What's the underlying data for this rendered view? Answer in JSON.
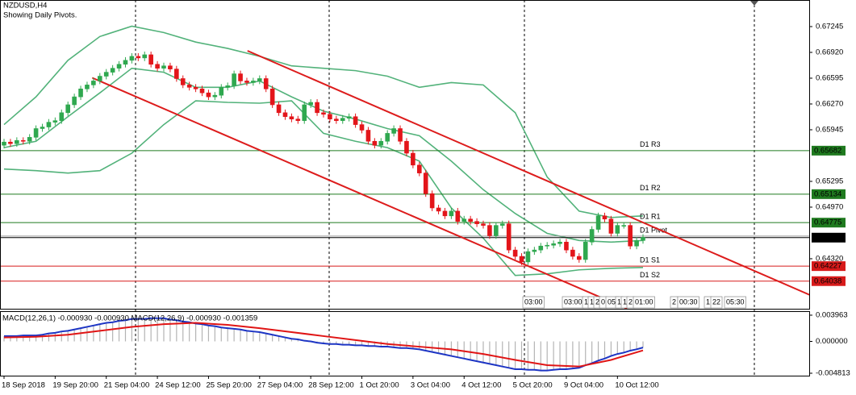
{
  "chart_data": [
    {
      "type": "candlestick",
      "title": "NZDUSD,H4",
      "subtitle": "Showing Daily Pivots.",
      "categories": [
        "18 Sep 2018",
        null,
        null,
        null,
        null,
        null,
        null,
        null,
        "19 Sep 20:00",
        null,
        null,
        null,
        null,
        null,
        null,
        null,
        "21 Sep 04:00",
        null,
        null,
        null,
        null,
        null,
        null,
        null,
        "24 Sep 12:00",
        null,
        null,
        null,
        null,
        null,
        null,
        null,
        "25 Sep 20:00",
        null,
        null,
        null,
        null,
        null,
        null,
        null,
        "27 Sep 04:00",
        null,
        null,
        null,
        null,
        null,
        null,
        null,
        "28 Sep 12:00",
        null,
        null,
        null,
        null,
        null,
        null,
        null,
        "1 Oct 20:00",
        null,
        null,
        null,
        null,
        null,
        null,
        null,
        "3 Oct 04:00",
        null,
        null,
        null,
        null,
        null,
        null,
        null,
        "4 Oct 12:00",
        null,
        null,
        null,
        null,
        null,
        null,
        null,
        "5 Oct 20:00",
        null,
        null,
        null,
        null,
        null,
        null,
        null,
        "9 Oct 04:00",
        null,
        null,
        null,
        null,
        null,
        null,
        null,
        "10 Oct 12:00",
        null,
        null,
        null,
        null
      ],
      "open": [
        0.6575,
        0.6579,
        0.6577,
        0.6581,
        0.658,
        0.6585,
        0.6596,
        0.6598,
        0.6604,
        0.6606,
        0.6616,
        0.6626,
        0.6636,
        0.6646,
        0.6651,
        0.6656,
        0.6662,
        0.6667,
        0.6672,
        0.6677,
        0.6682,
        0.6687,
        0.6685,
        0.6689,
        0.6677,
        0.6672,
        0.6675,
        0.6671,
        0.6659,
        0.6651,
        0.6648,
        0.6646,
        0.6641,
        0.6636,
        0.6638,
        0.6648,
        0.665,
        0.6665,
        0.6656,
        0.6654,
        0.6656,
        0.6659,
        0.6646,
        0.6626,
        0.6616,
        0.6611,
        0.6608,
        0.6606,
        0.6626,
        0.6629,
        0.6616,
        0.6614,
        0.6608,
        0.6606,
        0.6609,
        0.6611,
        0.6601,
        0.6594,
        0.658,
        0.6575,
        0.658,
        0.659,
        0.6596,
        0.658,
        0.6565,
        0.655,
        0.654,
        0.6514,
        0.6496,
        0.6492,
        0.6486,
        0.6492,
        0.6479,
        0.6482,
        0.6479,
        0.6476,
        0.6474,
        0.6461,
        0.6474,
        0.6476,
        0.6443,
        0.6435,
        0.6428,
        0.6441,
        0.6443,
        0.6448,
        0.6449,
        0.6451,
        0.6453,
        0.6443,
        0.6435,
        0.6431,
        0.6453,
        0.6469,
        0.6486,
        0.6482,
        0.6464,
        0.6474,
        0.6474,
        0.6448,
        0.6455
      ],
      "high": [
        0.6583,
        0.6583,
        0.6585,
        0.6585,
        0.6589,
        0.66,
        0.6602,
        0.6608,
        0.661,
        0.662,
        0.663,
        0.664,
        0.665,
        0.6655,
        0.666,
        0.6666,
        0.6671,
        0.6676,
        0.6681,
        0.6686,
        0.6691,
        0.6691,
        0.6693,
        0.6693,
        0.6681,
        0.6679,
        0.6679,
        0.6675,
        0.6663,
        0.6655,
        0.6652,
        0.665,
        0.6645,
        0.6642,
        0.6652,
        0.6654,
        0.6669,
        0.6669,
        0.666,
        0.666,
        0.6663,
        0.6663,
        0.665,
        0.663,
        0.662,
        0.6615,
        0.6612,
        0.663,
        0.6633,
        0.6633,
        0.662,
        0.6618,
        0.6612,
        0.6613,
        0.6615,
        0.6615,
        0.6605,
        0.6598,
        0.6584,
        0.6584,
        0.6594,
        0.66,
        0.66,
        0.6584,
        0.6569,
        0.6554,
        0.6544,
        0.6518,
        0.65,
        0.6496,
        0.6496,
        0.6496,
        0.6486,
        0.6486,
        0.6483,
        0.648,
        0.6478,
        0.6478,
        0.648,
        0.648,
        0.6447,
        0.6439,
        0.6445,
        0.6447,
        0.6452,
        0.6453,
        0.6455,
        0.6457,
        0.6457,
        0.6447,
        0.6439,
        0.6457,
        0.6473,
        0.649,
        0.649,
        0.6486,
        0.6478,
        0.6478,
        0.6478,
        0.6459,
        0.6463
      ],
      "low": [
        0.6571,
        0.6573,
        0.6573,
        0.6576,
        0.6576,
        0.6581,
        0.6592,
        0.6594,
        0.66,
        0.6602,
        0.6612,
        0.6622,
        0.6632,
        0.6642,
        0.6647,
        0.6652,
        0.6658,
        0.6663,
        0.6668,
        0.6673,
        0.6678,
        0.6681,
        0.6681,
        0.6673,
        0.6668,
        0.6668,
        0.6667,
        0.6655,
        0.6647,
        0.6644,
        0.6642,
        0.6637,
        0.6632,
        0.6632,
        0.6634,
        0.6644,
        0.6646,
        0.6652,
        0.665,
        0.665,
        0.6652,
        0.6642,
        0.6622,
        0.6612,
        0.6607,
        0.6604,
        0.6602,
        0.6602,
        0.6622,
        0.6612,
        0.661,
        0.6604,
        0.6602,
        0.6602,
        0.6605,
        0.6597,
        0.659,
        0.6576,
        0.6571,
        0.6571,
        0.6576,
        0.6586,
        0.6576,
        0.6561,
        0.6546,
        0.6536,
        0.651,
        0.6492,
        0.6488,
        0.6482,
        0.6482,
        0.6475,
        0.6475,
        0.6475,
        0.6472,
        0.647,
        0.6457,
        0.6457,
        0.647,
        0.6439,
        0.6431,
        0.6424,
        0.6424,
        0.6437,
        0.6439,
        0.6444,
        0.6445,
        0.6447,
        0.6439,
        0.6431,
        0.6427,
        0.6427,
        0.6449,
        0.6465,
        0.6478,
        0.646,
        0.646,
        0.647,
        0.6444,
        0.6444,
        0.6451
      ],
      "close": [
        0.6579,
        0.6577,
        0.6581,
        0.658,
        0.6585,
        0.6596,
        0.6598,
        0.6604,
        0.6606,
        0.6616,
        0.6626,
        0.6636,
        0.6646,
        0.6651,
        0.6656,
        0.6662,
        0.6667,
        0.6672,
        0.6677,
        0.6682,
        0.6687,
        0.6685,
        0.6689,
        0.6677,
        0.6672,
        0.6675,
        0.6671,
        0.6659,
        0.6651,
        0.6648,
        0.6646,
        0.6641,
        0.6636,
        0.6638,
        0.6648,
        0.665,
        0.6665,
        0.6656,
        0.6654,
        0.6656,
        0.6659,
        0.6646,
        0.6626,
        0.6616,
        0.6611,
        0.6608,
        0.6606,
        0.6626,
        0.6629,
        0.6616,
        0.6614,
        0.6608,
        0.6606,
        0.6609,
        0.6611,
        0.6601,
        0.6594,
        0.658,
        0.6575,
        0.658,
        0.659,
        0.6596,
        0.658,
        0.6565,
        0.655,
        0.654,
        0.6514,
        0.6496,
        0.6492,
        0.6486,
        0.6492,
        0.6479,
        0.6482,
        0.6479,
        0.6476,
        0.6474,
        0.6461,
        0.6474,
        0.6476,
        0.6443,
        0.6435,
        0.6428,
        0.6441,
        0.6443,
        0.6448,
        0.6449,
        0.6451,
        0.6453,
        0.6443,
        0.6435,
        0.6431,
        0.6453,
        0.6469,
        0.6486,
        0.6482,
        0.6464,
        0.6474,
        0.6474,
        0.6448,
        0.6455,
        0.6459
      ],
      "up_color": "#2fa84f",
      "down_color": "#e3151a",
      "bands": [
        {
          "color": "#52b27a",
          "x": [
            0,
            5,
            10,
            15,
            20,
            25,
            30,
            35,
            40,
            45,
            50,
            55,
            60,
            65,
            70,
            75,
            80,
            85,
            90,
            95,
            100
          ],
          "values": [
            0.6601,
            0.6636,
            0.6682,
            0.6712,
            0.6725,
            0.6717,
            0.6705,
            0.6697,
            0.6687,
            0.6675,
            0.6672,
            0.6669,
            0.6662,
            0.6648,
            0.6654,
            0.6651,
            0.6616,
            0.6535,
            0.6492,
            0.6484,
            0.6486
          ]
        },
        {
          "color": "#52b27a",
          "x": [
            0,
            5,
            10,
            15,
            20,
            25,
            30,
            35,
            40,
            45,
            50,
            55,
            60,
            65,
            70,
            75,
            80,
            85,
            90,
            95,
            100
          ],
          "values": [
            0.6572,
            0.658,
            0.6611,
            0.6641,
            0.6672,
            0.6667,
            0.6648,
            0.6648,
            0.6656,
            0.6636,
            0.6618,
            0.6608,
            0.6596,
            0.6587,
            0.6555,
            0.6519,
            0.6489,
            0.6464,
            0.6455,
            0.6453,
            0.6455
          ]
        },
        {
          "color": "#52b27a",
          "x": [
            0,
            5,
            10,
            15,
            20,
            25,
            30,
            35,
            40,
            45,
            50,
            55,
            60,
            65,
            70,
            75,
            80,
            85,
            90,
            95,
            100
          ],
          "values": [
            0.6545,
            0.6543,
            0.654,
            0.6543,
            0.6565,
            0.6601,
            0.6631,
            0.6629,
            0.6628,
            0.6631,
            0.659,
            0.658,
            0.6572,
            0.6555,
            0.6496,
            0.6458,
            0.6411,
            0.6413,
            0.6418,
            0.642,
            0.6421
          ]
        }
      ],
      "trendlines": [
        {
          "color": "#dd1c1c",
          "x": [
            38.1,
            126.5
          ],
          "values": [
            0.6694,
            0.6385
          ]
        },
        {
          "color": "#dd1c1c",
          "x": [
            13.8,
            97.5
          ],
          "values": [
            0.666,
            0.6369
          ]
        }
      ],
      "levels": [
        {
          "label": "D1 R3",
          "value": 0.65682,
          "color": "#1f7a1f",
          "box": true
        },
        {
          "label": "D1 R2",
          "value": 0.65134,
          "color": "#1f7a1f",
          "box": true
        },
        {
          "label": "D1 R1",
          "value": 0.64775,
          "color": "#1f7a1f",
          "box": true
        },
        {
          "label": "D1 Pivot",
          "value": 0.64605,
          "color": "#9a9a9a",
          "box": false
        },
        {
          "label": "D1 S1",
          "value": 0.64227,
          "color": "#d71a1a",
          "box": true
        },
        {
          "label": "D1 S2",
          "value": 0.64038,
          "color": "#d71a1a",
          "box": true
        }
      ],
      "last_price": 0.64586,
      "last_color": "#000000",
      "time_markers": [
        "03:00",
        "03:00",
        "1",
        "1",
        "2",
        "0",
        "05:",
        "1",
        "1",
        "2",
        "01:00",
        "2",
        "00:30",
        "1",
        "22",
        "05:30"
      ],
      "ylim": [
        0.6369,
        0.6758
      ],
      "yticks": [
        0.67245,
        {
          "value": 0.6692,
          "label": "0.66920"
        },
        0.66595,
        {
          "value": 0.6627,
          "label": "0.66270"
        },
        0.65945,
        0.65295,
        {
          "value": 0.6497,
          "label": "0.64970"
        },
        {
          "value": 0.6432,
          "label": "0.64320"
        }
      ],
      "grid": false
    },
    {
      "type": "macd",
      "title": "MACD(12,26,1) -0.000930 -0.000930 MACD(12,26,9) -0.000930 -0.001359",
      "values": [
        0.0008,
        0.0008,
        0.0008,
        0.0009,
        0.0009,
        0.0009,
        0.001,
        0.0012,
        0.0013,
        0.0015,
        0.0016,
        0.0018,
        0.002,
        0.0022,
        0.0024,
        0.0026,
        0.0028,
        0.0029,
        0.0031,
        0.0032,
        0.0034,
        0.0034,
        0.0034,
        0.0035,
        0.0035,
        0.0035,
        0.0033,
        0.0032,
        0.003,
        0.0029,
        0.0027,
        0.0026,
        0.0024,
        0.0023,
        0.0021,
        0.002,
        0.0019,
        0.0018,
        0.0016,
        0.0015,
        0.0014,
        0.0012,
        0.001,
        0.0008,
        0.0006,
        0.0004,
        0.0003,
        0.0001,
        0.0,
        -0.0002,
        -0.0003,
        -0.0004,
        -0.0004,
        -0.0005,
        -0.0005,
        -0.0006,
        -0.0006,
        -0.0007,
        -0.0007,
        -0.0008,
        -0.0008,
        -0.0009,
        -0.001,
        -0.001,
        -0.0011,
        -0.0012,
        -0.0014,
        -0.0016,
        -0.0018,
        -0.002,
        -0.0022,
        -0.0024,
        -0.0026,
        -0.0028,
        -0.003,
        -0.0032,
        -0.0034,
        -0.0036,
        -0.0038,
        -0.004,
        -0.0042,
        -0.0042,
        -0.0043,
        -0.0043,
        -0.0044,
        -0.0044,
        -0.0043,
        -0.0042,
        -0.0042,
        -0.0041,
        -0.004,
        -0.0036,
        -0.0033,
        -0.0029,
        -0.0026,
        -0.0022,
        -0.0019,
        -0.0017,
        -0.0014,
        -0.0012,
        -0.00093
      ],
      "color": "#b4b4b4",
      "line_color": "#1d35c4",
      "signal": {
        "color": "#e01515",
        "x": [
          0,
          5,
          10,
          15,
          20,
          25,
          30,
          35,
          40,
          45,
          50,
          55,
          60,
          65,
          70,
          75,
          80,
          85,
          90,
          95,
          100
        ],
        "values": [
          0.0006,
          0.0007,
          0.001,
          0.0016,
          0.0022,
          0.0026,
          0.0028,
          0.0025,
          0.002,
          0.0014,
          0.0008,
          0.0002,
          -0.0004,
          -0.0008,
          -0.0012,
          -0.0019,
          -0.0028,
          -0.0036,
          -0.0038,
          -0.0028,
          -0.001359
        ]
      },
      "ylim": [
        -0.00518,
        0.00457
      ],
      "yticks": [
        0.003963,
        {
          "value": 0,
          "label": "0.000000"
        },
        -0.004813
      ]
    }
  ]
}
